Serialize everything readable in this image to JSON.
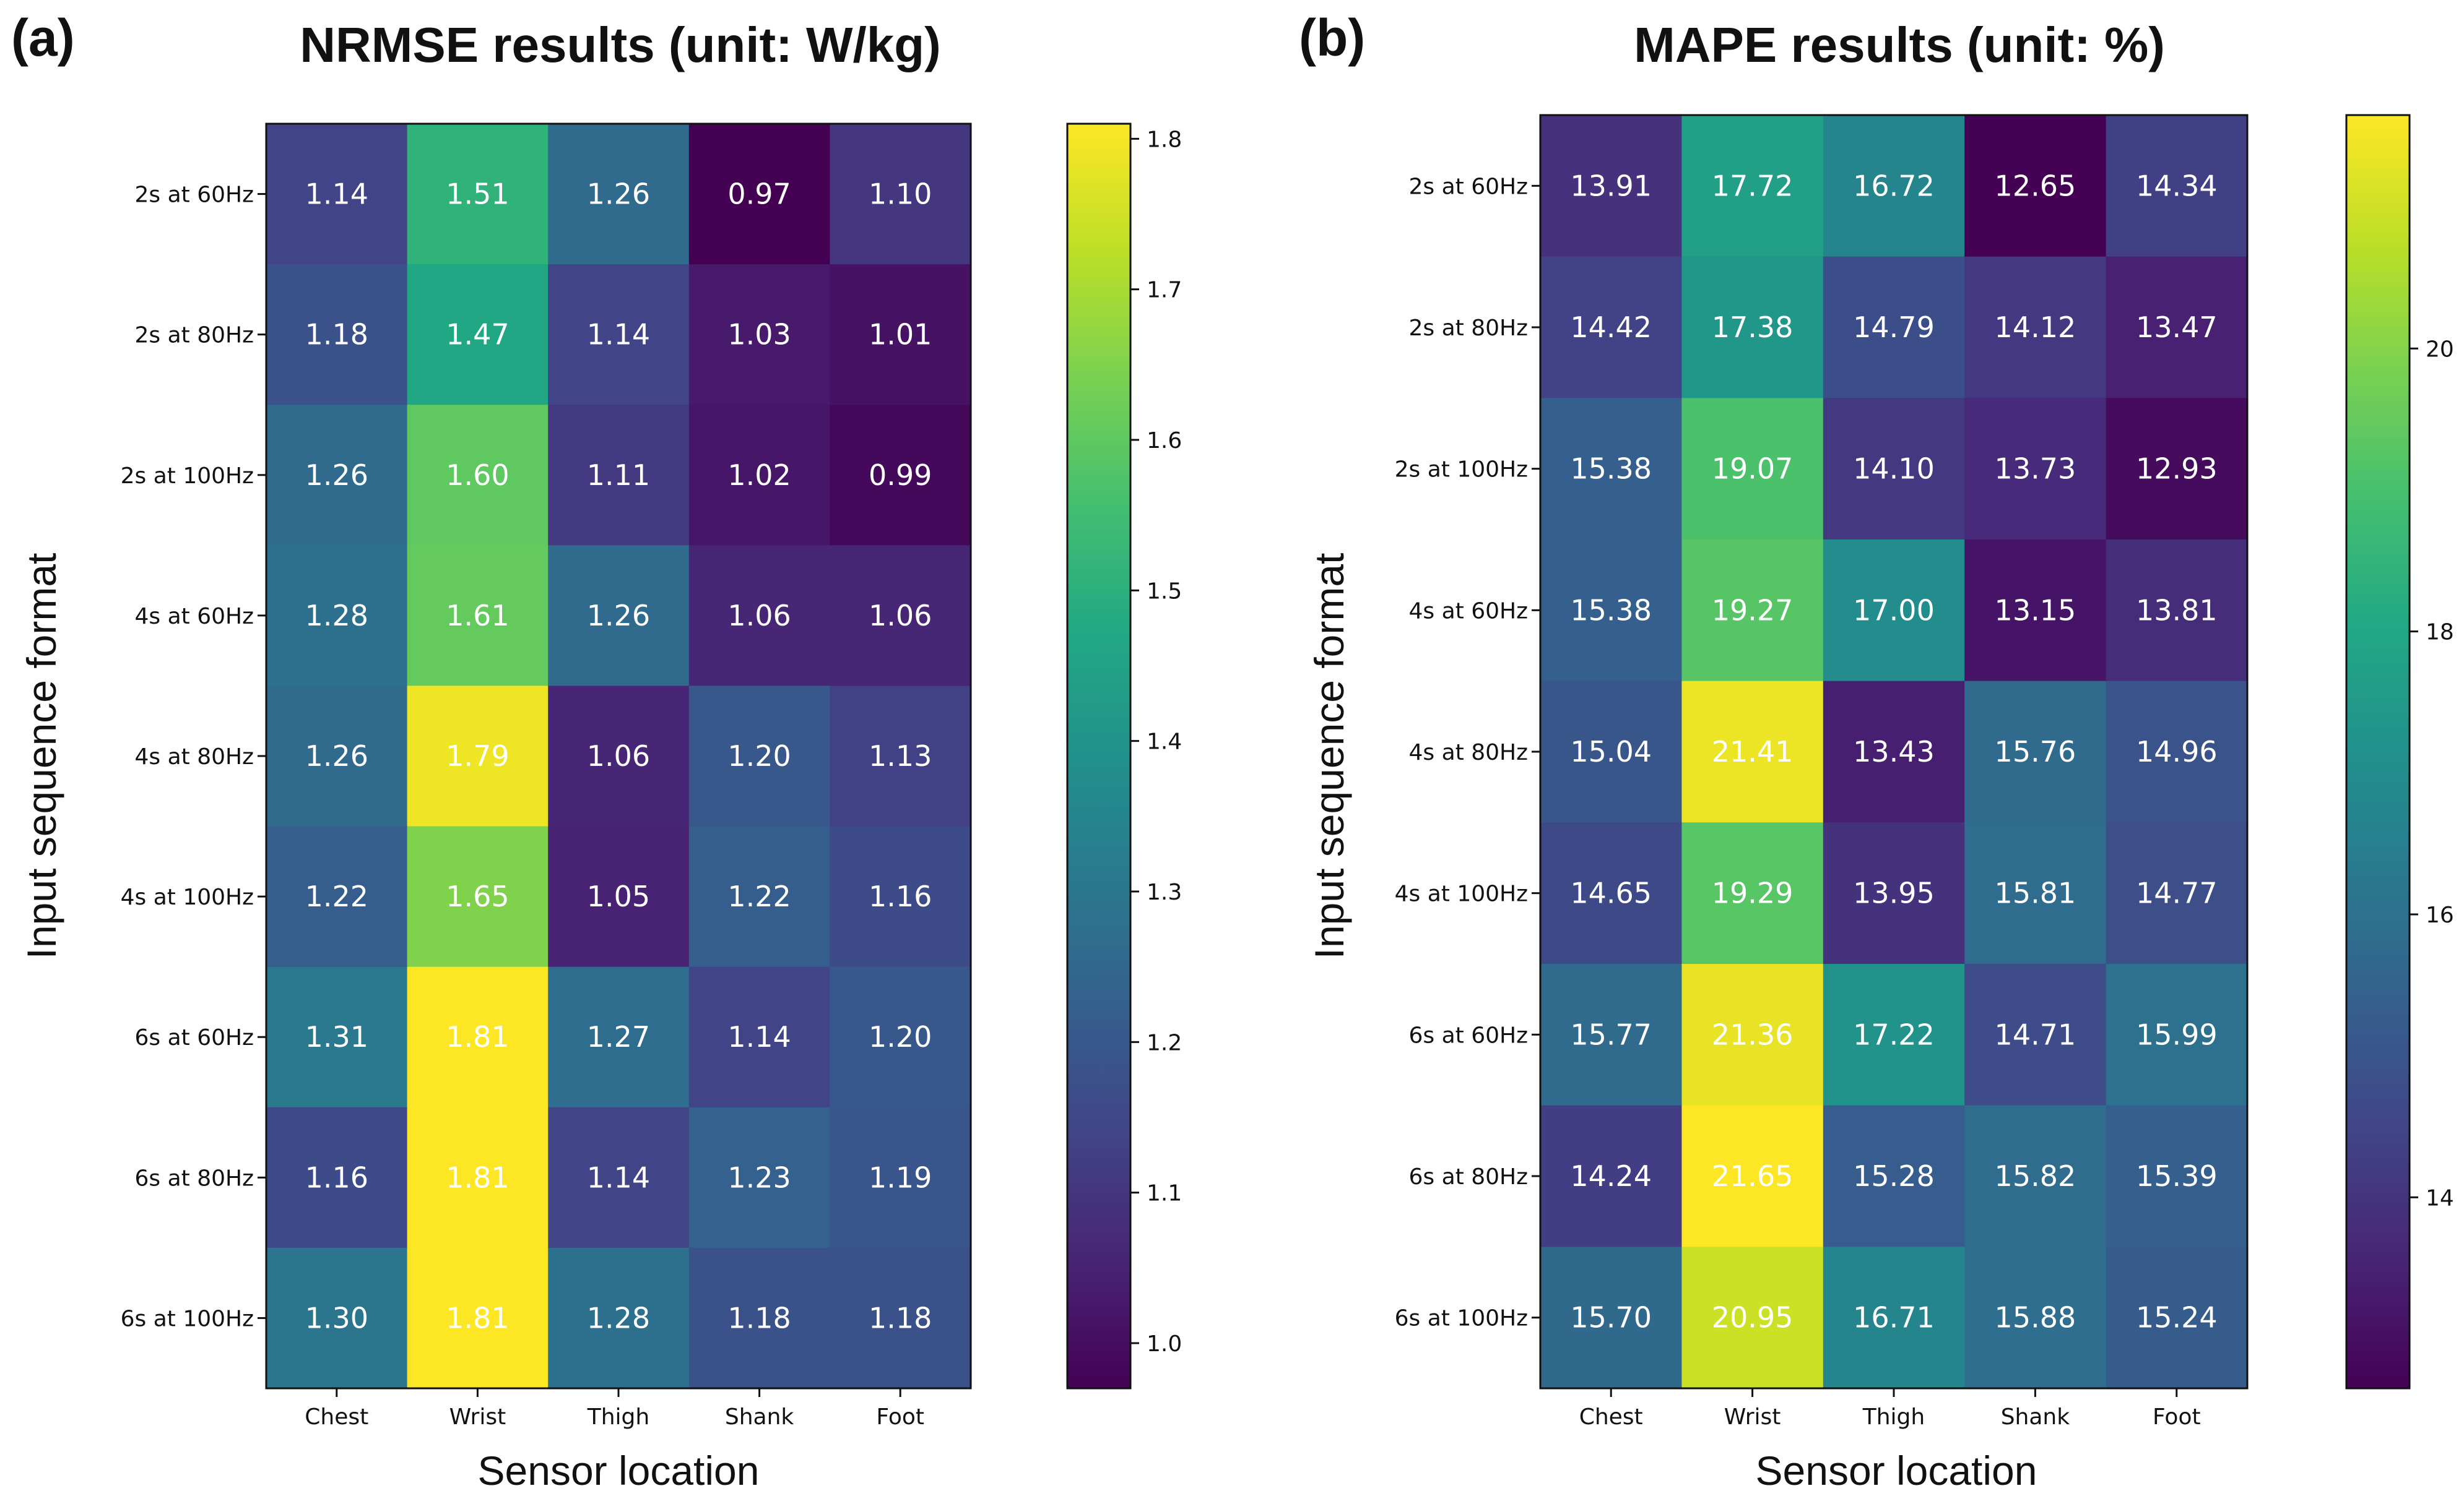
{
  "chart_data": [
    {
      "type": "heatmap",
      "panel_label": "(a)",
      "title": "NRMSE results (unit: W/kg)",
      "xlabel": "Sensor location",
      "ylabel": "Input sequence format",
      "columns": [
        "Chest",
        "Wrist",
        "Thigh",
        "Shank",
        "Foot"
      ],
      "rows": [
        "2s at 60Hz",
        "2s at 80Hz",
        "2s at 100Hz",
        "4s at 60Hz",
        "4s at 80Hz",
        "4s at 100Hz",
        "6s at 60Hz",
        "6s at 80Hz",
        "6s at 100Hz"
      ],
      "values": [
        [
          1.14,
          1.51,
          1.26,
          0.97,
          1.1
        ],
        [
          1.18,
          1.47,
          1.14,
          1.03,
          1.01
        ],
        [
          1.26,
          1.6,
          1.11,
          1.02,
          0.99
        ],
        [
          1.28,
          1.61,
          1.26,
          1.06,
          1.06
        ],
        [
          1.26,
          1.79,
          1.06,
          1.2,
          1.13
        ],
        [
          1.22,
          1.65,
          1.05,
          1.22,
          1.16
        ],
        [
          1.31,
          1.81,
          1.27,
          1.14,
          1.2
        ],
        [
          1.16,
          1.81,
          1.14,
          1.23,
          1.19
        ],
        [
          1.3,
          1.81,
          1.28,
          1.18,
          1.18
        ]
      ],
      "value_labels": [
        [
          "1.14",
          "1.51",
          "1.26",
          "0.97",
          "1.10"
        ],
        [
          "1.18",
          "1.47",
          "1.14",
          "1.03",
          "1.01"
        ],
        [
          "1.26",
          "1.60",
          "1.11",
          "1.02",
          "0.99"
        ],
        [
          "1.28",
          "1.61",
          "1.26",
          "1.06",
          "1.06"
        ],
        [
          "1.26",
          "1.79",
          "1.06",
          "1.20",
          "1.13"
        ],
        [
          "1.22",
          "1.65",
          "1.05",
          "1.22",
          "1.16"
        ],
        [
          "1.31",
          "1.81",
          "1.27",
          "1.14",
          "1.20"
        ],
        [
          "1.16",
          "1.81",
          "1.14",
          "1.23",
          "1.19"
        ],
        [
          "1.30",
          "1.81",
          "1.28",
          "1.18",
          "1.18"
        ]
      ],
      "colormap": "viridis",
      "vmin": 0.97,
      "vmax": 1.81,
      "colorbar_ticks": [
        1.0,
        1.1,
        1.2,
        1.3,
        1.4,
        1.5,
        1.6,
        1.7,
        1.8
      ],
      "colorbar_tick_labels": [
        "1.0",
        "1.1",
        "1.2",
        "1.3",
        "1.4",
        "1.5",
        "1.6",
        "1.7",
        "1.8"
      ]
    },
    {
      "type": "heatmap",
      "panel_label": "(b)",
      "title": "MAPE results (unit: %)",
      "xlabel": "Sensor location",
      "ylabel": "Input sequence format",
      "columns": [
        "Chest",
        "Wrist",
        "Thigh",
        "Shank",
        "Foot"
      ],
      "rows": [
        "2s at 60Hz",
        "2s at 80Hz",
        "2s at 100Hz",
        "4s at 60Hz",
        "4s at 80Hz",
        "4s at 100Hz",
        "6s at 60Hz",
        "6s at 80Hz",
        "6s at 100Hz"
      ],
      "values": [
        [
          13.91,
          17.72,
          16.72,
          12.65,
          14.34
        ],
        [
          14.42,
          17.38,
          14.79,
          14.12,
          13.47
        ],
        [
          15.38,
          19.07,
          14.1,
          13.73,
          12.93
        ],
        [
          15.38,
          19.27,
          17.0,
          13.15,
          13.81
        ],
        [
          15.04,
          21.41,
          13.43,
          15.76,
          14.96
        ],
        [
          14.65,
          19.29,
          13.95,
          15.81,
          14.77
        ],
        [
          15.77,
          21.36,
          17.22,
          14.71,
          15.99
        ],
        [
          14.24,
          21.65,
          15.28,
          15.82,
          15.39
        ],
        [
          15.7,
          20.95,
          16.71,
          15.88,
          15.24
        ]
      ],
      "value_labels": [
        [
          "13.91",
          "17.72",
          "16.72",
          "12.65",
          "14.34"
        ],
        [
          "14.42",
          "17.38",
          "14.79",
          "14.12",
          "13.47"
        ],
        [
          "15.38",
          "19.07",
          "14.10",
          "13.73",
          "12.93"
        ],
        [
          "15.38",
          "19.27",
          "17.00",
          "13.15",
          "13.81"
        ],
        [
          "15.04",
          "21.41",
          "13.43",
          "15.76",
          "14.96"
        ],
        [
          "14.65",
          "19.29",
          "13.95",
          "15.81",
          "14.77"
        ],
        [
          "15.77",
          "21.36",
          "17.22",
          "14.71",
          "15.99"
        ],
        [
          "14.24",
          "21.65",
          "15.28",
          "15.82",
          "15.39"
        ],
        [
          "15.70",
          "20.95",
          "16.71",
          "15.88",
          "15.24"
        ]
      ],
      "colormap": "viridis",
      "vmin": 12.65,
      "vmax": 21.65,
      "colorbar_ticks": [
        14,
        16,
        18,
        20
      ],
      "colorbar_tick_labels": [
        "14",
        "16",
        "18",
        "20"
      ]
    }
  ]
}
